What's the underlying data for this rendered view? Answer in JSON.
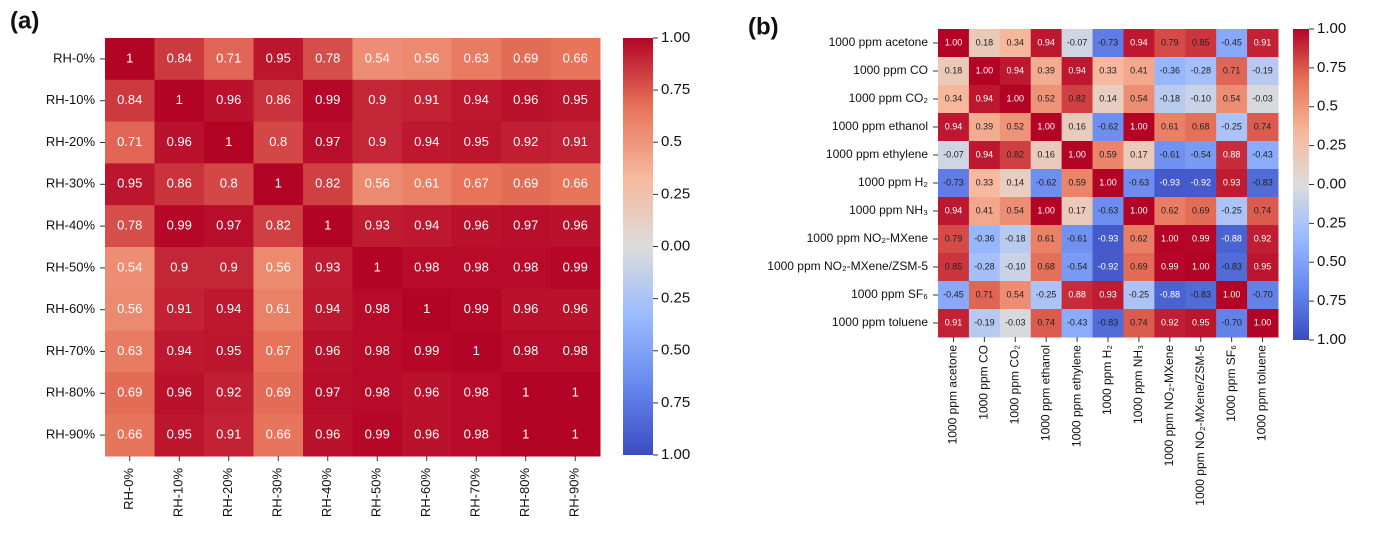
{
  "chart_data": [
    {
      "type": "heatmap",
      "panel_label": "(a)",
      "categories": [
        "RH-0%",
        "RH-10%",
        "RH-20%",
        "RH-30%",
        "RH-40%",
        "RH-50%",
        "RH-60%",
        "RH-70%",
        "RH-80%",
        "RH-90%"
      ],
      "values": [
        [
          1,
          0.84,
          0.71,
          0.95,
          0.78,
          0.54,
          0.56,
          0.63,
          0.69,
          0.66
        ],
        [
          0.84,
          1,
          0.96,
          0.86,
          0.99,
          0.9,
          0.91,
          0.94,
          0.96,
          0.95
        ],
        [
          0.71,
          0.96,
          1,
          0.8,
          0.97,
          0.9,
          0.94,
          0.95,
          0.92,
          0.91
        ],
        [
          0.95,
          0.86,
          0.8,
          1,
          0.82,
          0.56,
          0.61,
          0.67,
          0.69,
          0.66
        ],
        [
          0.78,
          0.99,
          0.97,
          0.82,
          1,
          0.93,
          0.94,
          0.96,
          0.97,
          0.96
        ],
        [
          0.54,
          0.9,
          0.9,
          0.56,
          0.93,
          1,
          0.98,
          0.98,
          0.98,
          0.99
        ],
        [
          0.56,
          0.91,
          0.94,
          0.61,
          0.94,
          0.98,
          1,
          0.99,
          0.96,
          0.96
        ],
        [
          0.63,
          0.94,
          0.95,
          0.67,
          0.96,
          0.98,
          0.99,
          1,
          0.98,
          0.98
        ],
        [
          0.69,
          0.96,
          0.92,
          0.69,
          0.97,
          0.98,
          0.96,
          0.98,
          1,
          1
        ],
        [
          0.66,
          0.95,
          0.91,
          0.66,
          0.96,
          0.99,
          0.96,
          0.98,
          1,
          1
        ]
      ],
      "zlim": [
        -1,
        1
      ],
      "zticks": [
        {
          "value": 1,
          "label": "1.00"
        },
        0.75,
        0.5,
        0.25,
        {
          "value": 0,
          "label": "0.00"
        },
        {
          "value": -0.25,
          "label": "0.25"
        },
        {
          "value": -0.5,
          "label": "0.50"
        },
        {
          "value": -0.75,
          "label": "0.75"
        },
        {
          "value": -1,
          "label": "1.00"
        }
      ],
      "colormap": [
        "#3b4cc0",
        "#6788ee",
        "#9abbff",
        "#dddcdc",
        "#f7b89c",
        "#e7745b",
        "#b40426"
      ]
    },
    {
      "type": "heatmap",
      "panel_label": "(b)",
      "categories": [
        "1000 ppm acetone",
        "1000 ppm CO",
        "1000 ppm CO₂",
        "1000 ppm ethanol",
        "1000 ppm ethylene",
        "1000 ppm H₂",
        "1000 ppm NH₃",
        "1000 ppm NO₂-MXene",
        "1000 ppm NO₂-MXene/ZSM-5",
        "1000 ppm SF₆",
        "1000 ppm toluene"
      ],
      "values": [
        [
          1,
          0.18,
          0.34,
          0.94,
          -0.07,
          -0.73,
          0.94,
          0.79,
          0.85,
          -0.45,
          0.91
        ],
        [
          0.18,
          1,
          0.94,
          0.39,
          0.94,
          0.33,
          0.41,
          -0.36,
          -0.28,
          0.71,
          -0.19
        ],
        [
          0.34,
          0.94,
          1,
          0.52,
          0.82,
          0.14,
          0.54,
          -0.18,
          -0.1,
          0.54,
          -0.03
        ],
        [
          0.94,
          0.39,
          0.52,
          1,
          0.16,
          -0.62,
          1,
          0.61,
          0.68,
          -0.25,
          0.74
        ],
        [
          -0.07,
          0.94,
          0.82,
          0.16,
          1,
          0.59,
          0.17,
          -0.61,
          -0.54,
          0.88,
          -0.43
        ],
        [
          -0.73,
          0.33,
          0.14,
          -0.62,
          0.59,
          1,
          -0.63,
          -0.93,
          -0.92,
          0.93,
          -0.83
        ],
        [
          0.94,
          0.41,
          0.54,
          1,
          0.17,
          -0.63,
          1,
          0.62,
          0.69,
          -0.25,
          0.74
        ],
        [
          0.79,
          -0.36,
          -0.18,
          0.61,
          -0.61,
          -0.93,
          0.62,
          1,
          0.99,
          -0.88,
          0.92
        ],
        [
          0.85,
          -0.28,
          -0.1,
          0.68,
          -0.54,
          -0.92,
          0.69,
          0.99,
          1,
          -0.83,
          0.95
        ],
        [
          -0.45,
          0.71,
          0.54,
          -0.25,
          0.88,
          0.93,
          -0.25,
          -0.88,
          -0.83,
          1,
          -0.7
        ],
        [
          0.91,
          -0.19,
          -0.03,
          0.74,
          -0.43,
          -0.83,
          0.74,
          0.92,
          0.95,
          -0.7,
          1
        ]
      ],
      "value_labels": [
        [
          "1.00",
          "0.18",
          "0.34",
          "0.94",
          "-0.07",
          "-0.73",
          "0.94",
          "0.79",
          "0.85",
          "-0.45",
          "0.91"
        ],
        [
          "0.18",
          "1.00",
          "0.94",
          "0.39",
          "0.94",
          "0.33",
          "0.41",
          "-0.36",
          "-0.28",
          "0.71",
          "-0.19"
        ],
        [
          "0.34",
          "0.94",
          "1.00",
          "0.52",
          "0.82",
          "0.14",
          "0.54",
          "-0.18",
          "-0.10",
          "0.54",
          "-0.03"
        ],
        [
          "0.94",
          "0.39",
          "0.52",
          "1.00",
          "0.16",
          "-0.62",
          "1.00",
          "0.61",
          "0.68",
          "-0.25",
          "0.74"
        ],
        [
          "-0.07",
          "0.94",
          "0.82",
          "0.16",
          "1.00",
          "0.59",
          "0.17",
          "-0.61",
          "-0.54",
          "0.88",
          "-0.43"
        ],
        [
          "-0.73",
          "0.33",
          "0.14",
          "-0.62",
          "0.59",
          "1.00",
          "-0.63",
          "-0.93",
          "-0.92",
          "0.93",
          "-0.83"
        ],
        [
          "0.94",
          "0.41",
          "0.54",
          "1.00",
          "0.17",
          "-0.63",
          "1.00",
          "0.62",
          "0.69",
          "-0.25",
          "0.74"
        ],
        [
          "0.79",
          "-0.36",
          "-0.18",
          "0.61",
          "-0.61",
          "-0.93",
          "0.62",
          "1.00",
          "0.99",
          "-0.88",
          "0.92"
        ],
        [
          "0.85",
          "-0.28",
          "-0.10",
          "0.68",
          "-0.54",
          "-0.92",
          "0.69",
          "0.99",
          "1.00",
          "-0.83",
          "0.95"
        ],
        [
          "-0.45",
          "0.71",
          "0.54",
          "-0.25",
          "0.88",
          "0.93",
          "-0.25",
          "-0.88",
          "-0.83",
          "1.00",
          "-0.70"
        ],
        [
          "0.91",
          "-0.19",
          "-0.03",
          "0.74",
          "-0.43",
          "-0.83",
          "0.74",
          "0.92",
          "0.95",
          "-0.70",
          "1.00"
        ]
      ],
      "zlim": [
        -1,
        1
      ],
      "zticks": [
        {
          "value": 1,
          "label": "1.00"
        },
        0.75,
        0.5,
        0.25,
        {
          "value": 0,
          "label": "0.00"
        },
        {
          "value": -0.25,
          "label": "0.25"
        },
        {
          "value": -0.5,
          "label": "0.50"
        },
        {
          "value": -0.75,
          "label": "0.75"
        },
        {
          "value": -1,
          "label": "1.00"
        }
      ],
      "colormap": [
        "#3b4cc0",
        "#6788ee",
        "#9abbff",
        "#dddcdc",
        "#f7b89c",
        "#e7745b",
        "#b40426"
      ]
    }
  ]
}
